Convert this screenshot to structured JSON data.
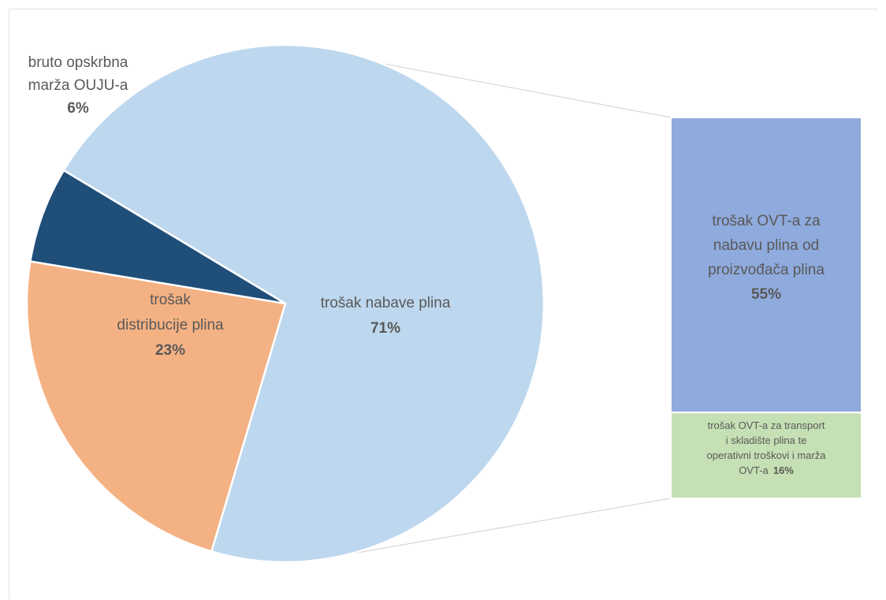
{
  "chart_data": {
    "type": "bar-of-pie",
    "pie": {
      "slices": [
        {
          "name_lines": [
            "trošak nabave plina"
          ],
          "pct_label": "71%",
          "value": 71,
          "color": "#bdd7ee"
        },
        {
          "name_lines": [
            "trošak",
            "distribucije plina"
          ],
          "pct_label": "23%",
          "value": 23,
          "color": "#f4b183"
        },
        {
          "name_lines": [
            "bruto opskrbna",
            "marža OUJU-a"
          ],
          "pct_label": "6%",
          "value": 6,
          "color": "#1f4e79"
        }
      ],
      "slice_border": "#ffffff"
    },
    "bar": {
      "segments": [
        {
          "name_lines": [
            "trošak OVT-a za",
            "nabavu plina od",
            "proizvođača plina"
          ],
          "pct_label": "55%",
          "value": 55,
          "color": "#8faadc"
        },
        {
          "name_lines": [
            "trošak OVT-a za transport",
            "i skladište plina te",
            "operativni troškovi i marža",
            "OVT-a"
          ],
          "pct_label": "16%",
          "value": 16,
          "color": "#c5e0b4"
        }
      ],
      "expands_slice": "trošak nabave plina"
    },
    "connector_color": "#d0d0d0",
    "label_color": "#595959"
  }
}
